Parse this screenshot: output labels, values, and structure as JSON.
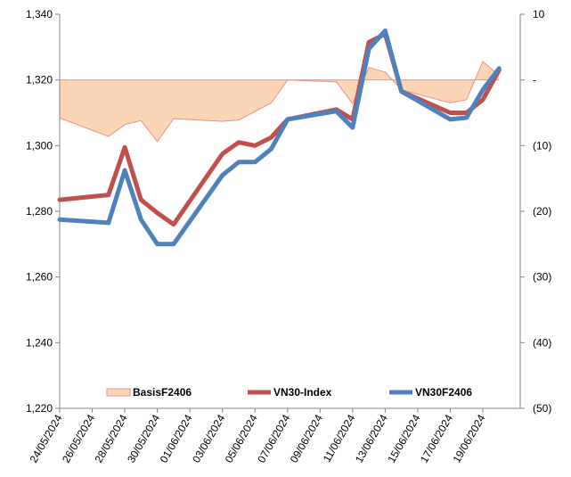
{
  "chart_data": {
    "type": "line",
    "title": "",
    "xlabel": "",
    "ylabel": "",
    "y2label": "",
    "x": [
      "24/05/2024",
      "27/05/2024",
      "28/05/2024",
      "29/05/2024",
      "30/05/2024",
      "31/05/2024",
      "03/06/2024",
      "04/06/2024",
      "05/06/2024",
      "06/06/2024",
      "07/06/2024",
      "10/06/2024",
      "11/06/2024",
      "12/06/2024",
      "13/06/2024",
      "14/06/2024",
      "17/06/2024",
      "18/06/2024",
      "19/06/2024",
      "20/06/2024"
    ],
    "x_ticks": [
      "24/05/2024",
      "26/05/2024",
      "28/05/2024",
      "30/05/2024",
      "01/06/2024",
      "03/06/2024",
      "05/06/2024",
      "07/06/2024",
      "09/06/2024",
      "11/06/2024",
      "13/06/2024",
      "15/06/2024",
      "17/06/2024",
      "19/06/2024"
    ],
    "y_ticks": [
      "1,220",
      "1,240",
      "1,260",
      "1,280",
      "1,300",
      "1,320",
      "1,340"
    ],
    "y2_ticks": [
      "10",
      "-",
      "(10)",
      "(20)",
      "(30)",
      "(40)",
      "(50)"
    ],
    "ylim": [
      1220,
      1340
    ],
    "y2lim": [
      -50,
      10
    ],
    "grid": false,
    "legend_position": "bottom",
    "series": [
      {
        "name": "BasisF2406",
        "type": "area",
        "axis": "secondary",
        "color": "#fbd5b5",
        "edge_color": "#e8928a",
        "values": [
          -5.8,
          -8.6,
          -6.8,
          -6.2,
          -9.4,
          -5.9,
          -6.3,
          -6.1,
          -4.8,
          -3.5,
          0.0,
          -0.3,
          -3.6,
          1.9,
          1.2,
          -1.5,
          -3.5,
          -3.0,
          2.8,
          0.7
        ]
      },
      {
        "name": "VN30-Index",
        "type": "line",
        "axis": "primary",
        "color": "#c0504d",
        "values": [
          1283.5,
          1285.0,
          1299.5,
          1283.5,
          1279.5,
          1276.0,
          1297.5,
          1301.0,
          1300.0,
          1302.5,
          1308.0,
          1311.0,
          1308.0,
          1331.5,
          1334.0,
          1316.5,
          1310.0,
          1310.0,
          1314.0,
          1323.0
        ]
      },
      {
        "name": "VN30F2406",
        "type": "line",
        "axis": "primary",
        "color": "#4f81bd",
        "values": [
          1277.5,
          1276.5,
          1292.5,
          1277.5,
          1270.0,
          1270.0,
          1291.0,
          1295.0,
          1295.0,
          1299.0,
          1308.0,
          1310.5,
          1305.5,
          1329.5,
          1335.0,
          1316.5,
          1308.0,
          1308.5,
          1317.0,
          1323.5
        ]
      }
    ]
  }
}
